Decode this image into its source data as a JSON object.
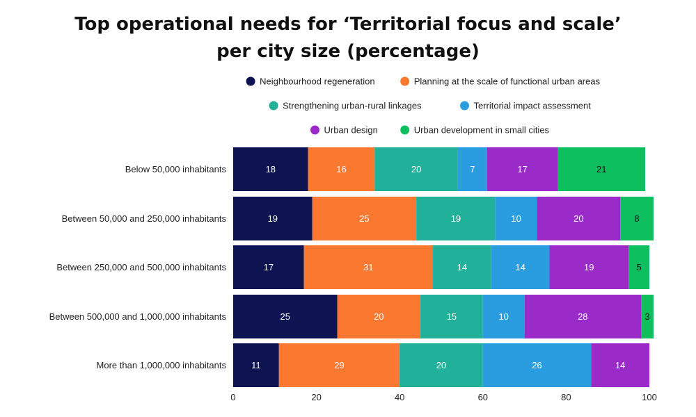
{
  "chart_data": {
    "type": "bar",
    "orientation": "horizontal",
    "stacked": true,
    "title": "Top operational needs for ‘Territorial focus and scale’ per city size (percentage)",
    "title_lines": [
      "Top operational needs for ‘Territorial focus and scale’",
      "per city size (percentage)"
    ],
    "categories": [
      "Below 50,000 inhabitants",
      "Between 50,000 and 250,000 inhabitants",
      "Between 250,000 and 500,000 inhabitants",
      "Between 500,000 and 1,000,000 inhabitants",
      "More than 1,000,000 inhabitants"
    ],
    "series": [
      {
        "name": "Neighbourhood regeneration",
        "color": "#0d1451",
        "label_color": "#ffffff",
        "values": [
          18,
          19,
          17,
          25,
          11
        ]
      },
      {
        "name": "Planning at the scale of functional urban areas",
        "color": "#fb7830",
        "label_color": "#ffffff",
        "values": [
          16,
          25,
          31,
          20,
          29
        ]
      },
      {
        "name": "Strengthening urban-rural linkages",
        "color": "#21b09a",
        "label_color": "#ffffff",
        "values": [
          20,
          19,
          14,
          15,
          20
        ]
      },
      {
        "name": "Territorial impact assessment",
        "color": "#2a9de1",
        "label_color": "#ffffff",
        "values": [
          7,
          10,
          14,
          10,
          26
        ]
      },
      {
        "name": "Urban design",
        "color": "#9b2bc8",
        "label_color": "#ffffff",
        "values": [
          17,
          20,
          19,
          28,
          14
        ]
      },
      {
        "name": "Urban development in small cities",
        "color": "#0dbf5e",
        "label_color": "#111111",
        "values": [
          21,
          8,
          5,
          3,
          null
        ]
      }
    ],
    "xlim": [
      0,
      100
    ],
    "xticks": [
      0,
      20,
      40,
      60,
      80,
      100
    ],
    "xlabel": "",
    "ylabel": "",
    "grid": false,
    "legend_position": "top-center"
  }
}
